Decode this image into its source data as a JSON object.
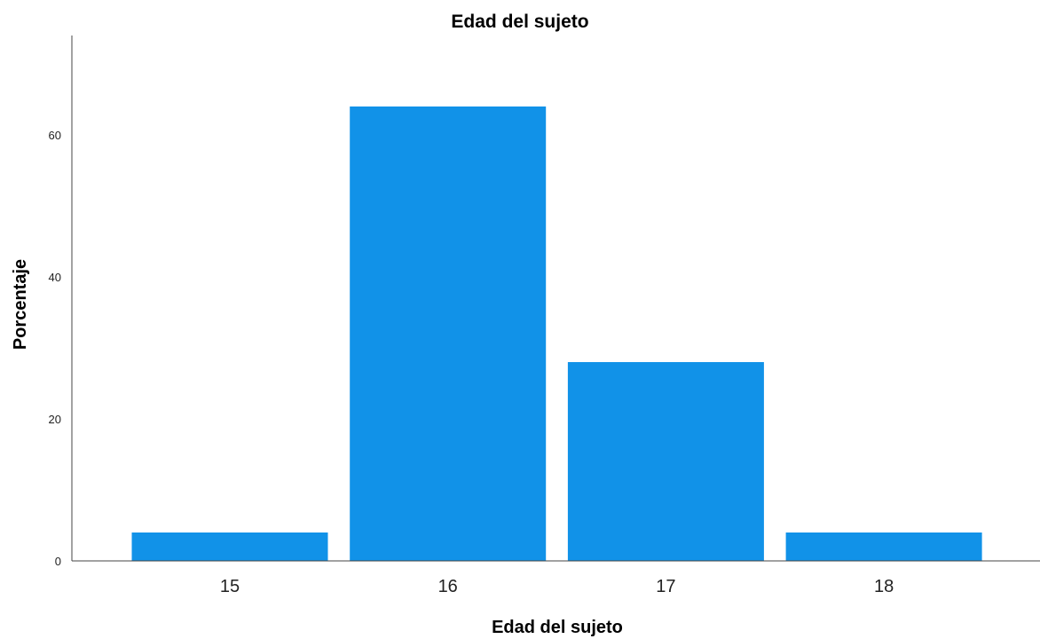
{
  "chart_data": {
    "type": "bar",
    "title": "Edad del sujeto",
    "xlabel": "Edad del sujeto",
    "ylabel": "Porcentaje",
    "categories": [
      "15",
      "16",
      "17",
      "18"
    ],
    "values": [
      4,
      64,
      28,
      4
    ],
    "ylim": [
      0,
      74
    ],
    "yticks": [
      "0",
      "20",
      "40",
      "60"
    ],
    "ytick_values": [
      0,
      20,
      40,
      60
    ],
    "bar_color": "#1192e8",
    "grid": false
  }
}
